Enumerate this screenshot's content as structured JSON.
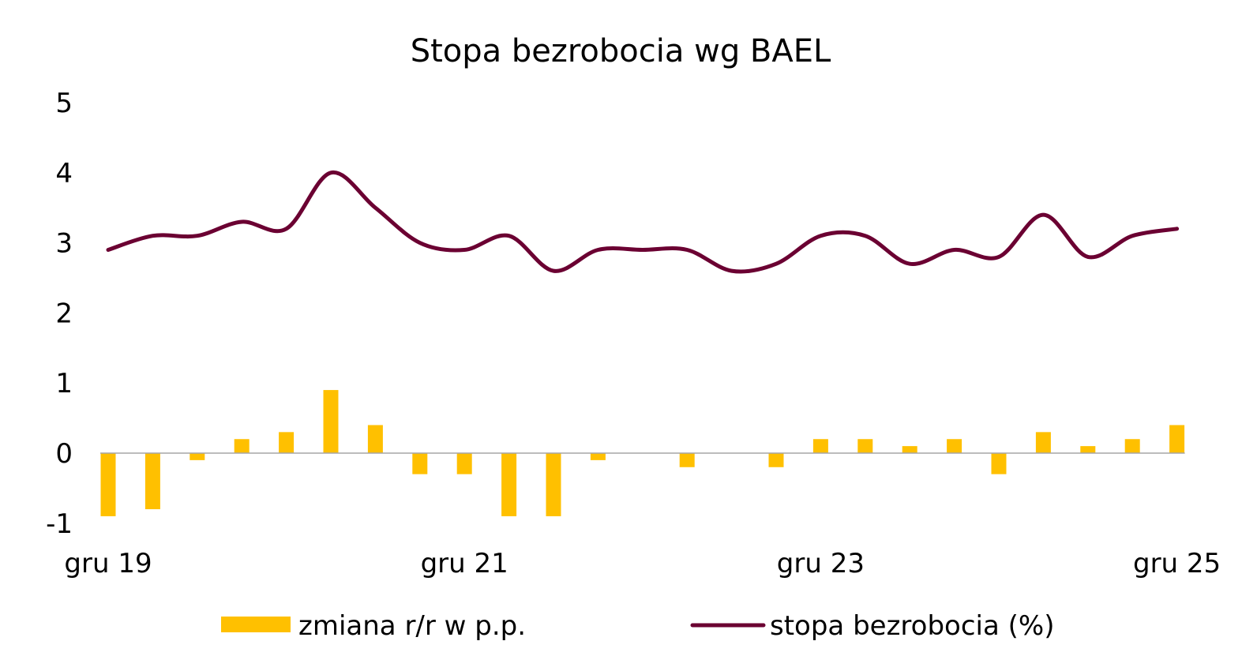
{
  "chart_data": {
    "type": "bar",
    "title": "Stopa bezrobocia wg BAEL",
    "xlabel": "",
    "ylabel": "",
    "ylim": [
      -1,
      5
    ],
    "yticks": [
      "5",
      "4",
      "3",
      "2",
      "1",
      "0",
      "-1"
    ],
    "ytick_values": [
      5,
      4,
      3,
      2,
      1,
      0,
      -1
    ],
    "x_tick_labels": [
      "gru 19",
      "gru 21",
      "gru 23",
      "gru 25"
    ],
    "x_tick_indices": [
      0,
      8,
      16,
      24
    ],
    "grid": false,
    "legend_position": "bottom",
    "colors": {
      "bars": "#FFC000",
      "line": "#6B0032",
      "axis": "#A6A6A6"
    },
    "series": [
      {
        "name": "zmiana r/r w p.p.",
        "type": "bar",
        "values": [
          -0.9,
          -0.8,
          -0.1,
          0.2,
          0.3,
          0.9,
          0.4,
          -0.3,
          -0.3,
          -0.9,
          -0.9,
          -0.1,
          0.0,
          -0.2,
          0.0,
          -0.2,
          0.2,
          0.2,
          0.1,
          0.2,
          -0.3,
          0.3,
          0.1,
          0.2,
          0.4
        ]
      },
      {
        "name": "stopa bezrobocia (%)",
        "type": "line",
        "values": [
          2.9,
          3.1,
          3.1,
          3.3,
          3.2,
          4.0,
          3.5,
          3.0,
          2.9,
          3.1,
          2.6,
          2.9,
          2.9,
          2.9,
          2.6,
          2.7,
          3.1,
          3.1,
          2.7,
          2.9,
          2.8,
          3.4,
          2.8,
          3.1,
          3.2
        ]
      }
    ]
  }
}
